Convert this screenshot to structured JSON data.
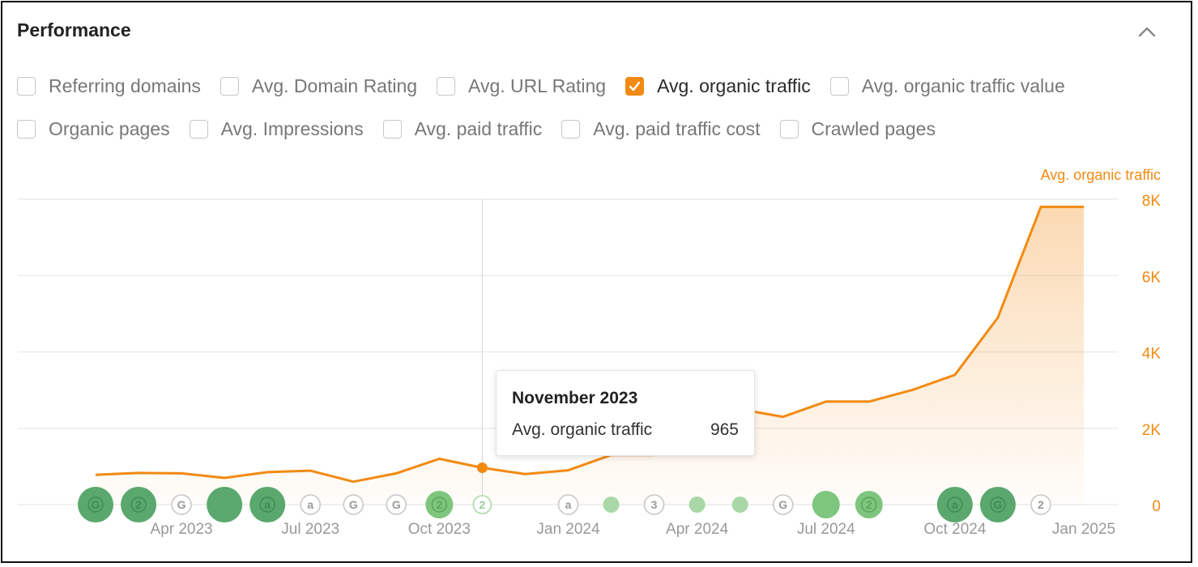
{
  "header": {
    "title": "Performance",
    "collapse_icon": "chevron-up-icon"
  },
  "filters": {
    "row1": [
      {
        "label": "Referring domains",
        "checked": false
      },
      {
        "label": "Avg. Domain Rating",
        "checked": false
      },
      {
        "label": "Avg. URL Rating",
        "checked": false
      },
      {
        "label": "Avg. organic traffic",
        "checked": true
      },
      {
        "label": "Avg. organic traffic value",
        "checked": false
      }
    ],
    "row2": [
      {
        "label": "Organic pages",
        "checked": false
      },
      {
        "label": "Avg. Impressions",
        "checked": false
      },
      {
        "label": "Avg. paid traffic",
        "checked": false
      },
      {
        "label": "Avg. paid traffic cost",
        "checked": false
      },
      {
        "label": "Crawled pages",
        "checked": false
      }
    ]
  },
  "colors": {
    "accent": "#f28a12",
    "grid": "#e8e8e8",
    "marker_dark": "#5aa86e",
    "marker_light": "#a9d8a6"
  },
  "chart_data": {
    "type": "area",
    "y_axis_title": "Avg. organic traffic",
    "ylim": [
      0,
      8000
    ],
    "y_ticks": [
      0,
      2000,
      4000,
      6000,
      8000
    ],
    "y_tick_labels": [
      "0",
      "2K",
      "4K",
      "6K",
      "8K"
    ],
    "x_ticks": [
      "2023-04",
      "2023-07",
      "2023-10",
      "2024-01",
      "2024-04",
      "2024-07",
      "2024-10",
      "2025-01"
    ],
    "x_tick_labels": [
      "Apr 2023",
      "Jul 2023",
      "Oct 2023",
      "Jan 2024",
      "Apr 2024",
      "Jul 2024",
      "Oct 2024",
      "Jan 2025"
    ],
    "series": [
      {
        "x": [
          "2023-02",
          "2023-03",
          "2023-04",
          "2023-05",
          "2023-06",
          "2023-07",
          "2023-08",
          "2023-09",
          "2023-10",
          "2023-11",
          "2023-12",
          "2024-01",
          "2024-02",
          "2024-03",
          "2024-04",
          "2024-05",
          "2024-06",
          "2024-07",
          "2024-08",
          "2024-09",
          "2024-10",
          "2024-11",
          "2024-12",
          "2025-01"
        ],
        "values": [
          780,
          830,
          820,
          700,
          850,
          890,
          600,
          820,
          1200,
          965,
          800,
          900,
          1300,
          1300,
          2200,
          2500,
          2300,
          2700,
          2700,
          3000,
          3400,
          4900,
          7800,
          7800
        ]
      }
    ],
    "highlight": {
      "x": "2023-11",
      "value": 965
    },
    "grid": true,
    "tooltip": {
      "title": "November 2023",
      "label": "Avg. organic traffic",
      "value": "965"
    },
    "event_markers": [
      {
        "x": "2023-02",
        "type": "filled-dark",
        "glyph": "G"
      },
      {
        "x": "2023-03",
        "type": "filled-dark",
        "glyph": "2"
      },
      {
        "x": "2023-04",
        "type": "outline",
        "glyph": "G"
      },
      {
        "x": "2023-05",
        "type": "filled-dark",
        "glyph": ""
      },
      {
        "x": "2023-06",
        "type": "filled-dark",
        "glyph": "a"
      },
      {
        "x": "2023-07",
        "type": "outline",
        "glyph": "a"
      },
      {
        "x": "2023-08",
        "type": "outline",
        "glyph": "G"
      },
      {
        "x": "2023-09",
        "type": "outline",
        "glyph": "G"
      },
      {
        "x": "2023-10",
        "type": "filled-light",
        "glyph": "2"
      },
      {
        "x": "2023-11",
        "type": "outline-light",
        "glyph": "2"
      },
      {
        "x": "2024-01",
        "type": "outline",
        "glyph": "a"
      },
      {
        "x": "2024-02",
        "type": "dot-light",
        "glyph": ""
      },
      {
        "x": "2024-03",
        "type": "outline",
        "glyph": "3"
      },
      {
        "x": "2024-04",
        "type": "dot-light",
        "glyph": ""
      },
      {
        "x": "2024-05",
        "type": "dot-light",
        "glyph": ""
      },
      {
        "x": "2024-06",
        "type": "outline",
        "glyph": "G"
      },
      {
        "x": "2024-07",
        "type": "filled-light",
        "glyph": ""
      },
      {
        "x": "2024-08",
        "type": "filled-light",
        "glyph": "2"
      },
      {
        "x": "2024-10",
        "type": "filled-dark",
        "glyph": "a"
      },
      {
        "x": "2024-11",
        "type": "filled-dark",
        "glyph": "G"
      },
      {
        "x": "2024-12",
        "type": "outline",
        "glyph": "2"
      }
    ]
  }
}
